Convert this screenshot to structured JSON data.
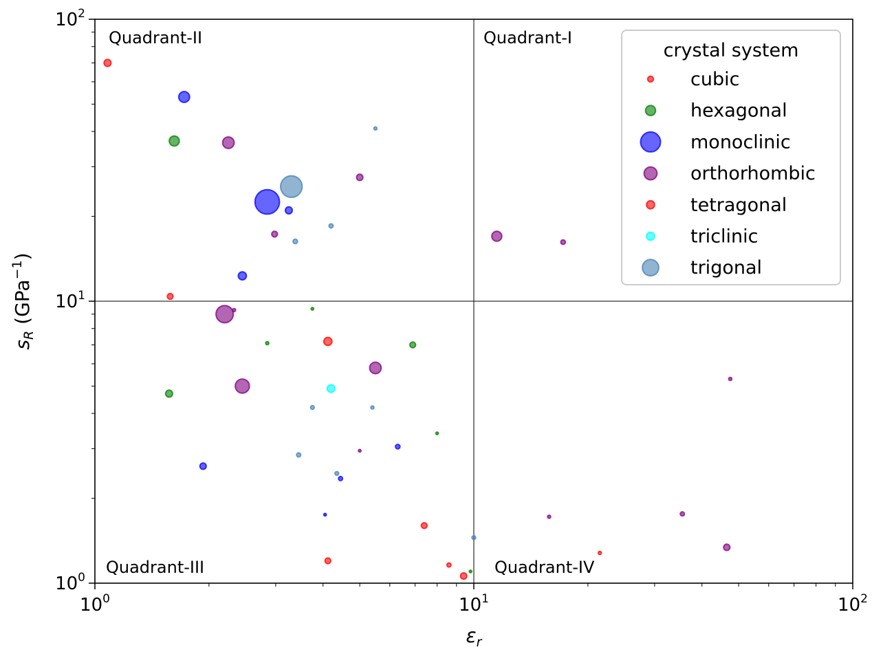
{
  "chart_data": {
    "type": "scatter",
    "xscale": "log",
    "yscale": "log",
    "xlim": [
      1,
      100
    ],
    "ylim": [
      1,
      100
    ],
    "grid": false,
    "xlabel": {
      "base": "ε",
      "sub": "r"
    },
    "ylabel": {
      "base": "s",
      "sub": "R",
      "unit_pre": "(GPa",
      "unit_sup": "−1",
      "unit_post": ")"
    },
    "x_ticks": [
      {
        "base": "10",
        "exp": "0"
      },
      {
        "base": "10",
        "exp": "1"
      },
      {
        "base": "10",
        "exp": "2"
      }
    ],
    "y_ticks": [
      {
        "base": "10",
        "exp": "0"
      },
      {
        "base": "10",
        "exp": "1"
      },
      {
        "base": "10",
        "exp": "2"
      }
    ],
    "divider_x": 10,
    "divider_y": 10,
    "quadrant_labels": [
      {
        "text": "Quadrant-I",
        "corner": "top-right"
      },
      {
        "text": "Quadrant-II",
        "corner": "top-left"
      },
      {
        "text": "Quadrant-III",
        "corner": "bottom-left"
      },
      {
        "text": "Quadrant-IV",
        "corner": "bottom-right"
      }
    ],
    "legend": {
      "title": "crystal system",
      "position": "top-right",
      "entries": [
        {
          "name": "cubic",
          "color": "#ff0000",
          "size": 1
        },
        {
          "name": "hexagonal",
          "color": "#008000",
          "size": 3
        },
        {
          "name": "monoclinic",
          "color": "#0000ff",
          "size": 12
        },
        {
          "name": "orthorhombic",
          "color": "#800080",
          "size": 5
        },
        {
          "name": "tetragonal",
          "color": "#ff0000",
          "size": 2
        },
        {
          "name": "triclinic",
          "color": "#00ffff",
          "size": 2
        },
        {
          "name": "trigonal",
          "color": "#4682b4",
          "size": 8
        }
      ]
    },
    "series": [
      {
        "name": "cubic",
        "color": "#ff0000",
        "points": [
          {
            "x": 21.5,
            "y": 1.28,
            "size": 0.3
          }
        ]
      },
      {
        "name": "hexagonal",
        "color": "#008000",
        "points": [
          {
            "x": 1.62,
            "y": 37,
            "size": 3
          },
          {
            "x": 1.57,
            "y": 4.7,
            "size": 1.5
          },
          {
            "x": 6.9,
            "y": 7.0,
            "size": 1
          },
          {
            "x": 2.85,
            "y": 7.1,
            "size": 0.3
          },
          {
            "x": 3.75,
            "y": 9.4,
            "size": 0.2
          },
          {
            "x": 8.0,
            "y": 3.4,
            "size": 0.2
          },
          {
            "x": 9.8,
            "y": 1.1,
            "size": 0.2
          }
        ]
      },
      {
        "name": "monoclinic",
        "color": "#0000ff",
        "points": [
          {
            "x": 1.72,
            "y": 53,
            "size": 3.5
          },
          {
            "x": 2.85,
            "y": 22.5,
            "size": 18
          },
          {
            "x": 3.25,
            "y": 21,
            "size": 1.5
          },
          {
            "x": 2.45,
            "y": 12.3,
            "size": 2
          },
          {
            "x": 1.93,
            "y": 2.6,
            "size": 1.2
          },
          {
            "x": 6.3,
            "y": 3.05,
            "size": 0.6
          },
          {
            "x": 4.45,
            "y": 2.35,
            "size": 0.5
          },
          {
            "x": 4.05,
            "y": 1.75,
            "size": 0.2
          }
        ]
      },
      {
        "name": "orthorhombic",
        "color": "#800080",
        "points": [
          {
            "x": 2.25,
            "y": 36.5,
            "size": 4
          },
          {
            "x": 5.0,
            "y": 27.5,
            "size": 1.2
          },
          {
            "x": 2.98,
            "y": 17.3,
            "size": 1
          },
          {
            "x": 2.2,
            "y": 9.0,
            "size": 9
          },
          {
            "x": 2.33,
            "y": 9.3,
            "size": 0.3
          },
          {
            "x": 2.45,
            "y": 5.0,
            "size": 6
          },
          {
            "x": 5.5,
            "y": 5.8,
            "size": 4
          },
          {
            "x": 5.0,
            "y": 2.95,
            "size": 0.2
          },
          {
            "x": 11.5,
            "y": 17.0,
            "size": 3
          },
          {
            "x": 17.2,
            "y": 16.2,
            "size": 0.6
          },
          {
            "x": 15.8,
            "y": 1.72,
            "size": 0.3
          },
          {
            "x": 35.5,
            "y": 1.76,
            "size": 0.5
          },
          {
            "x": 46.5,
            "y": 1.34,
            "size": 1.2
          },
          {
            "x": 47.5,
            "y": 5.3,
            "size": 0.3
          }
        ]
      },
      {
        "name": "tetragonal",
        "color": "#ff0000",
        "points": [
          {
            "x": 1.08,
            "y": 70,
            "size": 1.5
          },
          {
            "x": 1.58,
            "y": 10.4,
            "size": 1
          },
          {
            "x": 4.12,
            "y": 7.2,
            "size": 2
          },
          {
            "x": 7.4,
            "y": 1.6,
            "size": 1
          },
          {
            "x": 4.12,
            "y": 1.2,
            "size": 1
          },
          {
            "x": 8.6,
            "y": 1.16,
            "size": 0.5
          },
          {
            "x": 9.4,
            "y": 1.06,
            "size": 1.2
          }
        ]
      },
      {
        "name": "triclinic",
        "color": "#00ffff",
        "points": [
          {
            "x": 4.2,
            "y": 4.9,
            "size": 1.8
          }
        ]
      },
      {
        "name": "trigonal",
        "color": "#4682b4",
        "points": [
          {
            "x": 3.3,
            "y": 25.5,
            "size": 14
          },
          {
            "x": 5.5,
            "y": 41,
            "size": 0.3
          },
          {
            "x": 4.2,
            "y": 18.5,
            "size": 0.5
          },
          {
            "x": 3.38,
            "y": 16.3,
            "size": 0.6
          },
          {
            "x": 3.75,
            "y": 4.2,
            "size": 0.4
          },
          {
            "x": 5.4,
            "y": 4.2,
            "size": 0.3
          },
          {
            "x": 3.45,
            "y": 2.85,
            "size": 0.5
          },
          {
            "x": 4.35,
            "y": 2.45,
            "size": 0.4
          },
          {
            "x": 10.0,
            "y": 1.45,
            "size": 0.4
          }
        ]
      }
    ]
  }
}
